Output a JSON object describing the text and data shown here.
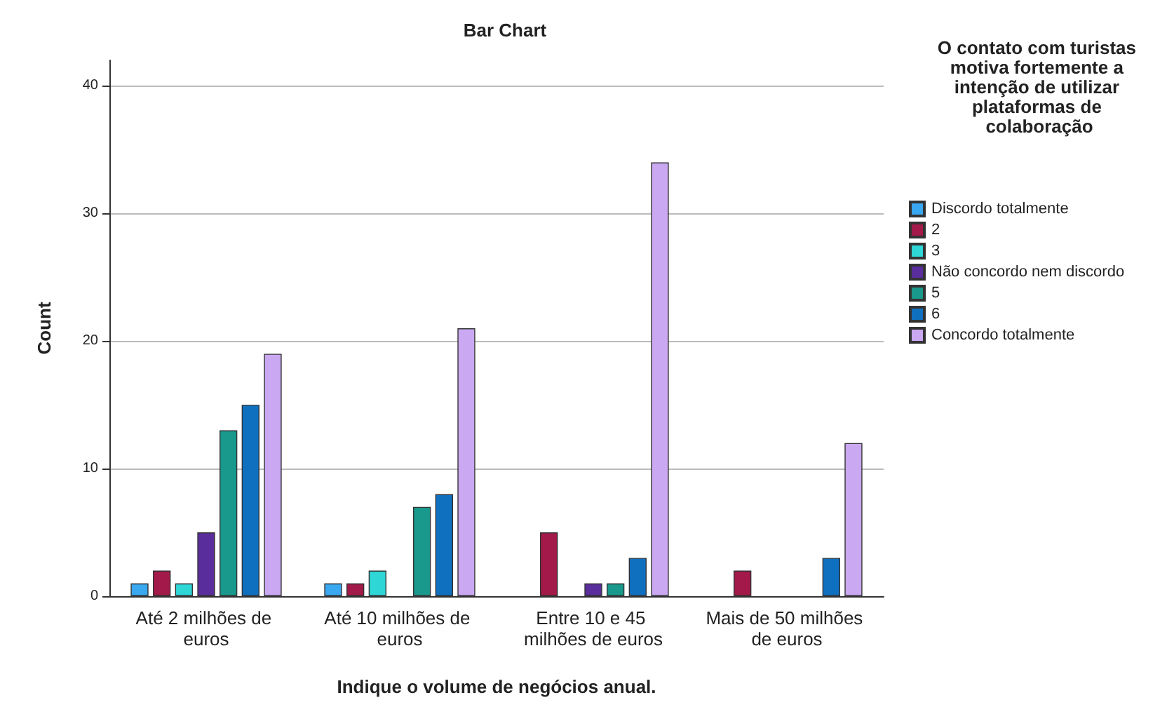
{
  "chart_data": {
    "type": "bar",
    "title": "Bar Chart",
    "xlabel": "Indique o volume de negócios anual.",
    "ylabel": "Count",
    "legend_title": "O contato com turistas motiva fortemente a intenção de utilizar plataformas de colaboração",
    "categories": [
      "Até 2 milhões de euros",
      "Até 10 milhões de euros",
      "Entre 10 e 45 milhões de euros",
      "Mais de 50 milhões de euros"
    ],
    "series": [
      {
        "name": "Discordo totalmente",
        "color": "#3aa8f0",
        "values": [
          1,
          1,
          null,
          null
        ]
      },
      {
        "name": "2",
        "color": "#a3194a",
        "values": [
          2,
          1,
          5,
          2
        ]
      },
      {
        "name": "3",
        "color": "#2fd6d6",
        "values": [
          1,
          2,
          null,
          null
        ]
      },
      {
        "name": "Não concordo nem discordo",
        "color": "#5a2d9c",
        "values": [
          5,
          null,
          1,
          null
        ]
      },
      {
        "name": "5",
        "color": "#19988c",
        "values": [
          13,
          7,
          1,
          null
        ]
      },
      {
        "name": "6",
        "color": "#1070c0",
        "values": [
          15,
          8,
          3,
          3
        ]
      },
      {
        "name": "Concordo totalmente",
        "color": "#caa8f2",
        "values": [
          19,
          21,
          34,
          12
        ]
      }
    ],
    "ylim": [
      0,
      42
    ],
    "yticks": [
      0,
      10,
      20,
      30,
      40
    ],
    "grid": "y",
    "legend": "right"
  }
}
